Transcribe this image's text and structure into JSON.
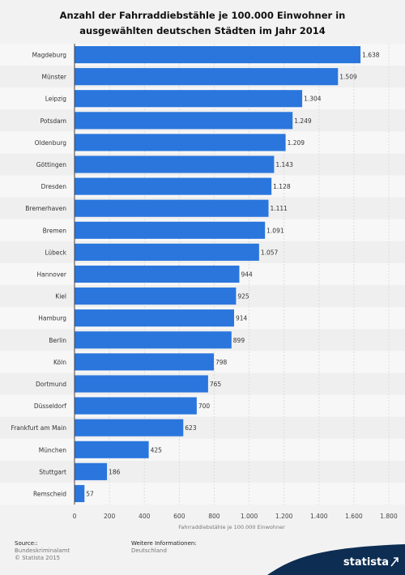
{
  "chart_data": {
    "type": "bar",
    "orientation": "horizontal",
    "title": "Anzahl der Fahrraddiebstähle je 100.000 Einwohner in ausgewählten deutschen Städten im Jahr 2014",
    "xlabel": "Fahrraddiebstähle je 100.000 Einwohner",
    "ylabel": "",
    "xlim": [
      0,
      1800
    ],
    "ticks": [
      "0",
      "200",
      "400",
      "600",
      "800",
      "1.000",
      "1.200",
      "1.400",
      "1.600",
      "1.800"
    ],
    "categories": [
      "Magdeburg",
      "Münster",
      "Leipzig",
      "Potsdam",
      "Oldenburg",
      "Göttingen",
      "Dresden",
      "Bremerhaven",
      "Bremen",
      "Lübeck",
      "Hannover",
      "Kiel",
      "Hamburg",
      "Berlin",
      "Köln",
      "Dortmund",
      "Düsseldorf",
      "Frankfurt am Main",
      "München",
      "Stuttgart",
      "Remscheid"
    ],
    "values": [
      1638,
      1509,
      1304,
      1249,
      1209,
      1143,
      1128,
      1111,
      1091,
      1057,
      944,
      925,
      914,
      899,
      798,
      765,
      700,
      623,
      425,
      186,
      57
    ],
    "value_labels": [
      "1.638",
      "1.509",
      "1.304",
      "1.249",
      "1.209",
      "1.143",
      "1.128",
      "1.111",
      "1.091",
      "1.057",
      "944",
      "925",
      "914",
      "899",
      "798",
      "765",
      "700",
      "623",
      "425",
      "186",
      "57"
    ],
    "bar_color": "#2a76dd",
    "grid": true
  },
  "footer": {
    "source_heading": "Source::",
    "source_lines": [
      "Bundeskriminalamt",
      "© Statista 2015"
    ],
    "info_heading": "Weitere Informationen:",
    "info_lines": [
      "Deutschland"
    ]
  },
  "brand": {
    "name": "statista",
    "color": "#0d2d52"
  }
}
